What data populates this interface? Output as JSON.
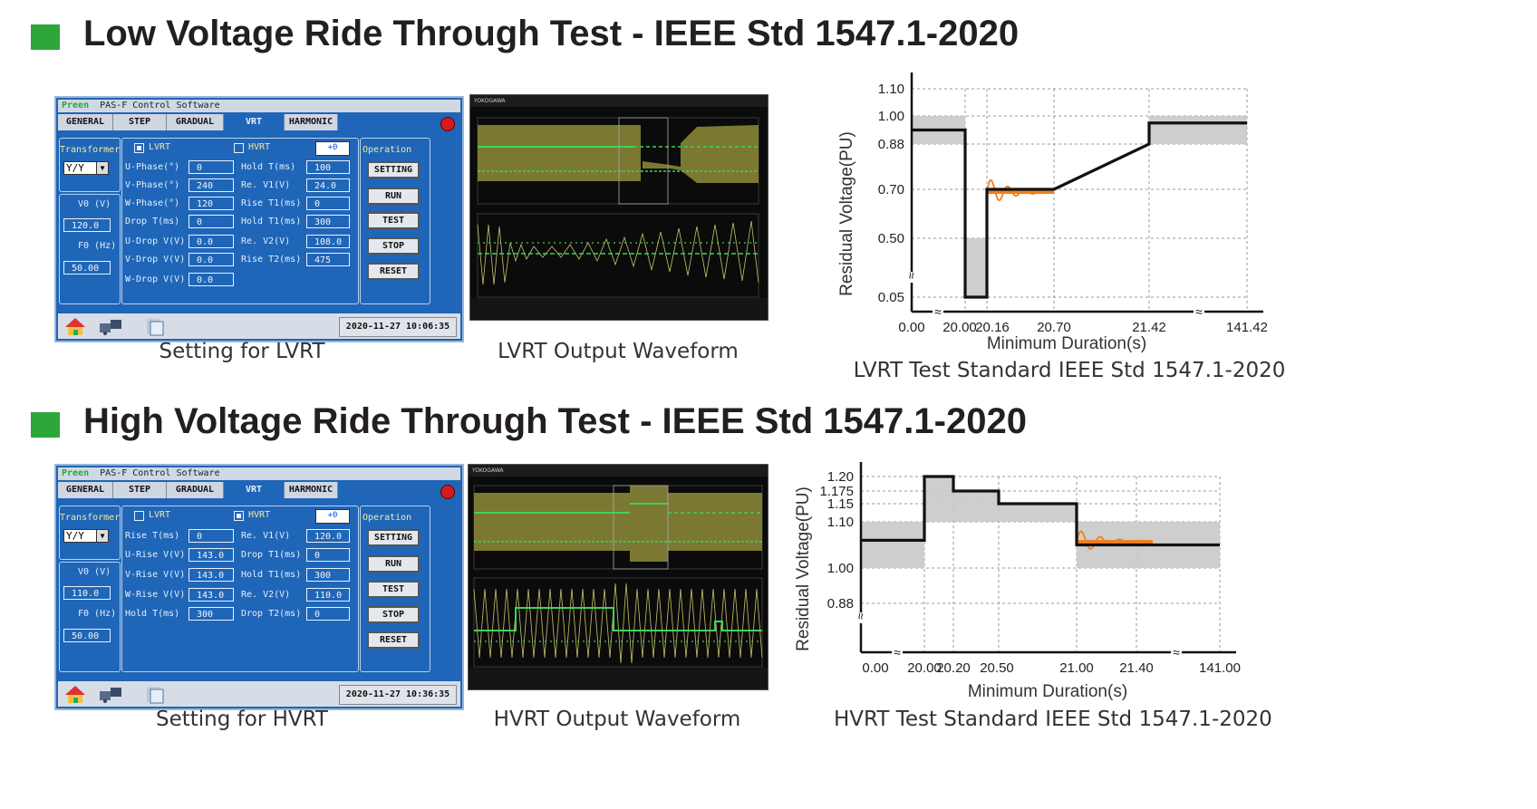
{
  "sections": {
    "lvrt_heading": "Low Voltage Ride Through Test - IEEE Std 1547.1-2020",
    "hvrt_heading": "High Voltage Ride Through Test - IEEE Std 1547.1-2020"
  },
  "captions": {
    "lvrt_setting": "Setting for LVRT",
    "lvrt_waveform": "LVRT Output Waveform",
    "lvrt_standard": "LVRT Test Standard IEEE Std 1547.1-2020",
    "hvrt_setting": "Setting for HVRT",
    "hvrt_waveform": "HVRT Output Waveform",
    "hvrt_standard": "HVRT Test Standard IEEE Std 1547.1-2020"
  },
  "software": {
    "brand": "Preen",
    "title": "PAS-F Control Software",
    "tabs": [
      "GENERAL",
      "STEP",
      "GRADUAL",
      "VRT",
      "HARMONIC"
    ],
    "active_tab": "VRT",
    "transformer_label": "Transformer",
    "transformer_value": "Y/Y",
    "v0_label": "V0  (V)",
    "f0_label": "F0  (Hz)",
    "operation_label": "Operation",
    "buttons": [
      "SETTING",
      "RUN",
      "TEST",
      "STOP",
      "RESET"
    ],
    "arrow_button": "+0",
    "lvrt_label": "LVRT",
    "hvrt_label": "HVRT"
  },
  "lvrt_panel": {
    "v0": "120.0",
    "f0": "50.00",
    "date": "2020-11-27  10:06:35",
    "left_fields": [
      {
        "label": "U-Phase(°)",
        "value": "0"
      },
      {
        "label": "V-Phase(°)",
        "value": "240"
      },
      {
        "label": "W-Phase(°)",
        "value": "120"
      },
      {
        "label": "Drop T(ms)",
        "value": "0"
      },
      {
        "label": "U-Drop V(V)",
        "value": "0.0"
      },
      {
        "label": "V-Drop V(V)",
        "value": "0.0"
      },
      {
        "label": "W-Drop V(V)",
        "value": "0.0"
      }
    ],
    "right_fields": [
      {
        "label": "Hold T(ms)",
        "value": "100"
      },
      {
        "label": "Re. V1(V)",
        "value": "24.0"
      },
      {
        "label": "Rise T1(ms)",
        "value": "0"
      },
      {
        "label": "Hold T1(ms)",
        "value": "300"
      },
      {
        "label": "Re. V2(V)",
        "value": "108.0"
      },
      {
        "label": "Rise T2(ms)",
        "value": "475"
      }
    ]
  },
  "hvrt_panel": {
    "v0": "110.0",
    "f0": "50.00",
    "date": "2020-11-27  10:36:35",
    "left_fields": [
      {
        "label": "Rise  T(ms)",
        "value": "0"
      },
      {
        "label": "U-Rise V(V)",
        "value": "143.0"
      },
      {
        "label": "V-Rise V(V)",
        "value": "143.0"
      },
      {
        "label": "W-Rise V(V)",
        "value": "143.0"
      },
      {
        "label": "Hold T(ms)",
        "value": "300"
      }
    ],
    "right_fields": [
      {
        "label": "Re. V1(V)",
        "value": "120.0"
      },
      {
        "label": "Drop T1(ms)",
        "value": "0"
      },
      {
        "label": "Hold T1(ms)",
        "value": "300"
      },
      {
        "label": "Re. V2(V)",
        "value": "110.0"
      },
      {
        "label": "Drop T2(ms)",
        "value": "0"
      }
    ]
  },
  "scope": {
    "brand": "YOKOGAWA"
  },
  "chart_data": [
    {
      "type": "line",
      "xlabel": "Minimum Duration(s)",
      "ylabel": "Residual Voltage(PU)",
      "x_ticks": [
        "0.00",
        "20.00",
        "20.16",
        "20.70",
        "21.42",
        "141.42"
      ],
      "y_ticks": [
        "1.10",
        "1.00",
        "0.88",
        "0.70",
        "0.50",
        "0.05"
      ],
      "series": [
        {
          "x": [
            "0.00",
            "20.00",
            "20.00",
            "20.16",
            "20.16",
            "20.70",
            "21.42",
            "21.42",
            "141.42"
          ],
          "y": [
            0.94,
            0.94,
            0.05,
            0.05,
            0.7,
            0.7,
            0.88,
            0.97,
            0.97
          ]
        }
      ],
      "tolerance_bands": [
        {
          "x": [
            "0.00",
            "20.00"
          ],
          "y": [
            0.88,
            1.0
          ]
        },
        {
          "x": [
            "20.00",
            "20.16"
          ],
          "y": [
            0.05,
            0.5
          ]
        },
        {
          "x": [
            "21.42",
            "141.42"
          ],
          "y": [
            0.88,
            1.0
          ]
        }
      ],
      "grid": true
    },
    {
      "type": "line",
      "xlabel": "Minimum Duration(s)",
      "ylabel": "Residual Voltage(PU)",
      "x_ticks": [
        "0.00",
        "20.00",
        "20.20",
        "20.50",
        "21.00",
        "21.40",
        "141.00"
      ],
      "y_ticks": [
        "1.20",
        "1.175",
        "1.15",
        "1.10",
        "1.00",
        "0.88"
      ],
      "series": [
        {
          "x": [
            "0.00",
            "20.00",
            "20.00",
            "20.20",
            "20.20",
            "20.50",
            "20.50",
            "21.00",
            "21.00",
            "141.00"
          ],
          "y": [
            1.06,
            1.06,
            1.2,
            1.2,
            1.175,
            1.175,
            1.15,
            1.15,
            1.05,
            1.05
          ]
        }
      ],
      "tolerance_bands": [
        {
          "x": [
            "0.00",
            "20.00"
          ],
          "y": [
            1.0,
            1.1
          ]
        },
        {
          "x": [
            "20.00",
            "20.20"
          ],
          "y": [
            1.1,
            1.2
          ]
        },
        {
          "x": [
            "20.20",
            "20.50"
          ],
          "y": [
            1.1,
            1.175
          ]
        },
        {
          "x": [
            "20.50",
            "21.00"
          ],
          "y": [
            1.1,
            1.15
          ]
        },
        {
          "x": [
            "21.00",
            "141.00"
          ],
          "y": [
            1.0,
            1.1
          ]
        }
      ],
      "grid": true
    }
  ]
}
